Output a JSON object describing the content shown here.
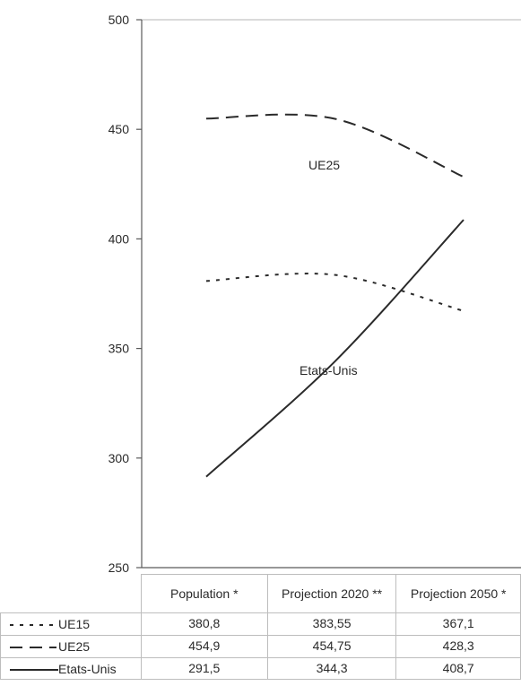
{
  "chart_data": {
    "type": "line",
    "categories": [
      "Population *",
      "Projection 2020 **",
      "Projection 2050 *"
    ],
    "series": [
      {
        "name": "UE15",
        "values": [
          380.8,
          383.55,
          367.1
        ],
        "style": "dotted",
        "color": "#2a2a2a"
      },
      {
        "name": "UE25",
        "values": [
          454.9,
          454.75,
          428.3
        ],
        "style": "dashed",
        "color": "#2a2a2a"
      },
      {
        "name": "Etats-Unis",
        "values": [
          291.5,
          344.3,
          408.7
        ],
        "style": "solid",
        "color": "#2a2a2a"
      }
    ],
    "y_ticks": [
      "500",
      "450",
      "400",
      "350",
      "300",
      "250"
    ],
    "ylim": [
      250,
      500
    ],
    "annotations": [
      "UE25",
      "Etats-Unis"
    ]
  },
  "table": {
    "rows": [
      {
        "label": "UE15",
        "values": [
          "380,8",
          "383,55",
          "367,1"
        ]
      },
      {
        "label": "UE25",
        "values": [
          "454,9",
          "454,75",
          "428,3"
        ]
      },
      {
        "label": "Etats-Unis",
        "values": [
          "291,5",
          "344,3",
          "408,7"
        ]
      }
    ]
  }
}
